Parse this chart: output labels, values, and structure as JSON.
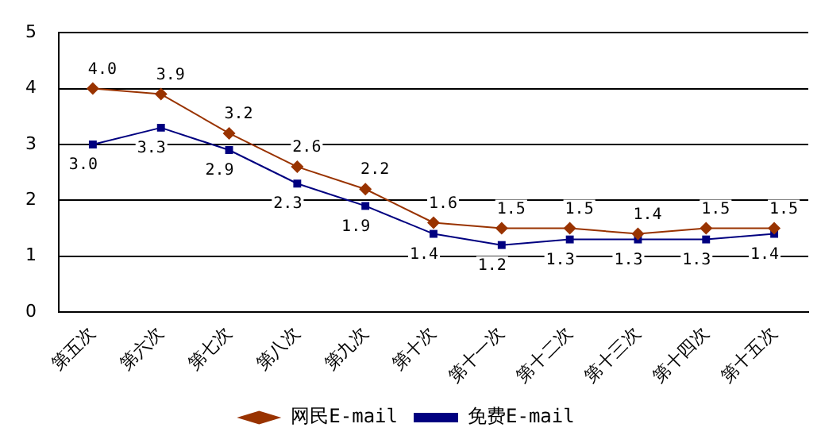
{
  "chart_data": {
    "type": "line",
    "categories": [
      "第五次",
      "第六次",
      "第七次",
      "第八次",
      "第九次",
      "第十次",
      "第十一次",
      "第十二次",
      "第十三次",
      "第十四次",
      "第十五次"
    ],
    "series": [
      {
        "name": "网民E-mail",
        "color": "#993300",
        "marker": "diamond",
        "values": [
          4.0,
          3.9,
          3.2,
          2.6,
          2.2,
          1.6,
          1.5,
          1.5,
          1.4,
          1.5,
          1.5
        ],
        "value_labels": [
          "4.0",
          "3.9",
          "3.2",
          "2.6",
          "2.2",
          "1.6",
          "1.5",
          "1.5",
          "1.4",
          "1.5",
          "1.5"
        ]
      },
      {
        "name": "免费E-mail",
        "color": "#000080",
        "marker": "square",
        "values": [
          3.0,
          3.3,
          2.9,
          2.3,
          1.9,
          1.4,
          1.2,
          1.3,
          1.3,
          1.3,
          1.4
        ],
        "value_labels": [
          "3.0",
          "3.3",
          "2.9",
          "2.3",
          "1.9",
          "1.4",
          "1.2",
          "1.3",
          "1.3",
          "1.3",
          "1.4"
        ]
      }
    ],
    "ylim": [
      0,
      5
    ],
    "yticks": [
      0,
      1,
      2,
      3,
      4,
      5
    ],
    "grid": "y",
    "legend": "bottom",
    "line_style": "solid"
  }
}
